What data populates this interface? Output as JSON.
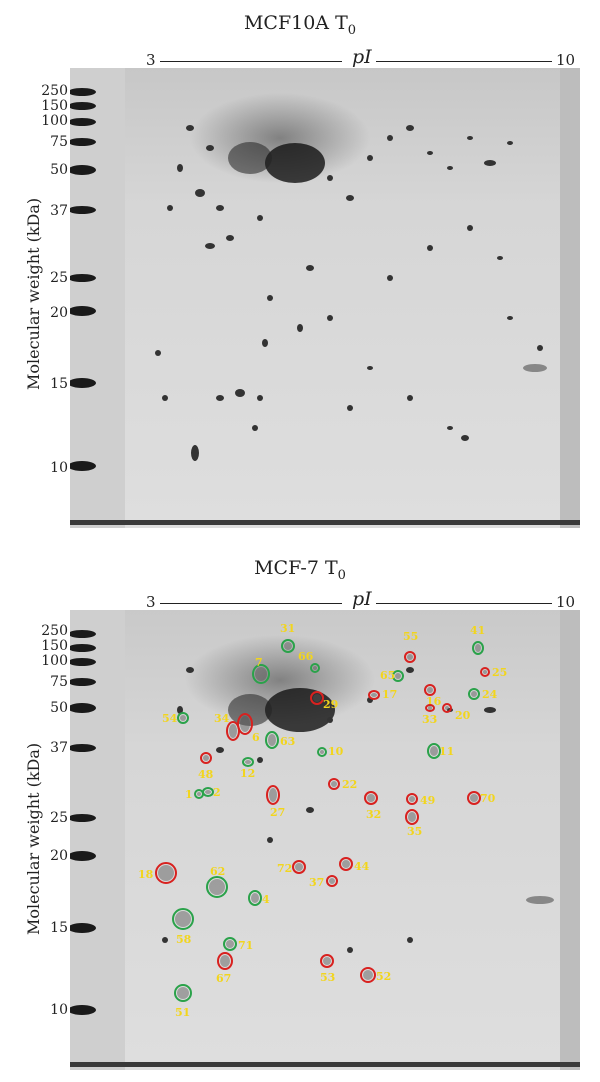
{
  "panels": [
    {
      "title": "MCF10A T",
      "title_sub": "0",
      "axis": {
        "left": "3",
        "right": "10",
        "label": "pI"
      },
      "ylabel": "Molecular weight (kDa)",
      "mw_labels": [
        "250",
        "150",
        "100",
        "75",
        "50",
        "37",
        "25",
        "20",
        "15",
        "10"
      ],
      "annotations": []
    },
    {
      "title": "MCF-7 T",
      "title_sub": "0",
      "axis": {
        "left": "3",
        "right": "10",
        "label": "pI"
      },
      "ylabel": "Molecular weight (kDa)",
      "mw_labels": [
        "250",
        "150",
        "100",
        "75",
        "50",
        "37",
        "25",
        "20",
        "15",
        "10"
      ],
      "annotations": [
        {
          "label": "31",
          "color": "green"
        },
        {
          "label": "41",
          "color": "green"
        },
        {
          "label": "55",
          "color": "red"
        },
        {
          "label": "25",
          "color": "red"
        },
        {
          "label": "66",
          "color": "green"
        },
        {
          "label": "65",
          "color": "green"
        },
        {
          "label": "16",
          "color": "red"
        },
        {
          "label": "7",
          "color": "green"
        },
        {
          "label": "17",
          "color": "red"
        },
        {
          "label": "24",
          "color": "green"
        },
        {
          "label": "29",
          "color": "red"
        },
        {
          "label": "33",
          "color": "red"
        },
        {
          "label": "20",
          "color": "red"
        },
        {
          "label": "54",
          "color": "green"
        },
        {
          "label": "34",
          "color": "red"
        },
        {
          "label": "6",
          "color": "red"
        },
        {
          "label": "63",
          "color": "green"
        },
        {
          "label": "10",
          "color": "green"
        },
        {
          "label": "11",
          "color": "green"
        },
        {
          "label": "48",
          "color": "red"
        },
        {
          "label": "12",
          "color": "green"
        },
        {
          "label": "22",
          "color": "red"
        },
        {
          "label": "1",
          "color": "green"
        },
        {
          "label": "2",
          "color": "green"
        },
        {
          "label": "27",
          "color": "red"
        },
        {
          "label": "32",
          "color": "red"
        },
        {
          "label": "49",
          "color": "red"
        },
        {
          "label": "70",
          "color": "red"
        },
        {
          "label": "35",
          "color": "red"
        },
        {
          "label": "18",
          "color": "red"
        },
        {
          "label": "62",
          "color": "green"
        },
        {
          "label": "72",
          "color": "red"
        },
        {
          "label": "44",
          "color": "red"
        },
        {
          "label": "37",
          "color": "red"
        },
        {
          "label": "4",
          "color": "green"
        },
        {
          "label": "58",
          "color": "green"
        },
        {
          "label": "71",
          "color": "green"
        },
        {
          "label": "67",
          "color": "red"
        },
        {
          "label": "53",
          "color": "red"
        },
        {
          "label": "52",
          "color": "red"
        },
        {
          "label": "51",
          "color": "green"
        }
      ]
    }
  ],
  "colors": {
    "green": "#2aa24a",
    "red": "#d8211f",
    "label": "#f2d51d"
  }
}
